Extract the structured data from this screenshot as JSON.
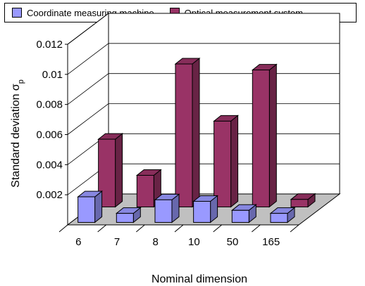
{
  "chart_data": {
    "type": "bar",
    "categories": [
      "6",
      "7",
      "8",
      "10",
      "50",
      "165"
    ],
    "series": [
      {
        "name": "Coordinate measuring machine",
        "values": [
          0.0017,
          0.0006,
          0.0015,
          0.0014,
          0.0008,
          0.0006
        ],
        "color": "#9999ff"
      },
      {
        "name": "Optical measurement system",
        "values": [
          0.0045,
          0.0021,
          0.0095,
          0.0057,
          0.0091,
          0.0005
        ],
        "color": "#993366"
      }
    ],
    "yticks": [
      "0.012",
      "0.01",
      "0.008",
      "0.006",
      "0.004",
      "0.002"
    ],
    "ylim": [
      0,
      0.012
    ],
    "xlabel": "Nominal dimension",
    "ylabel": "Standard deviation σ",
    "ylabel_subscript": "p",
    "legend_position": "top",
    "grid": true
  }
}
